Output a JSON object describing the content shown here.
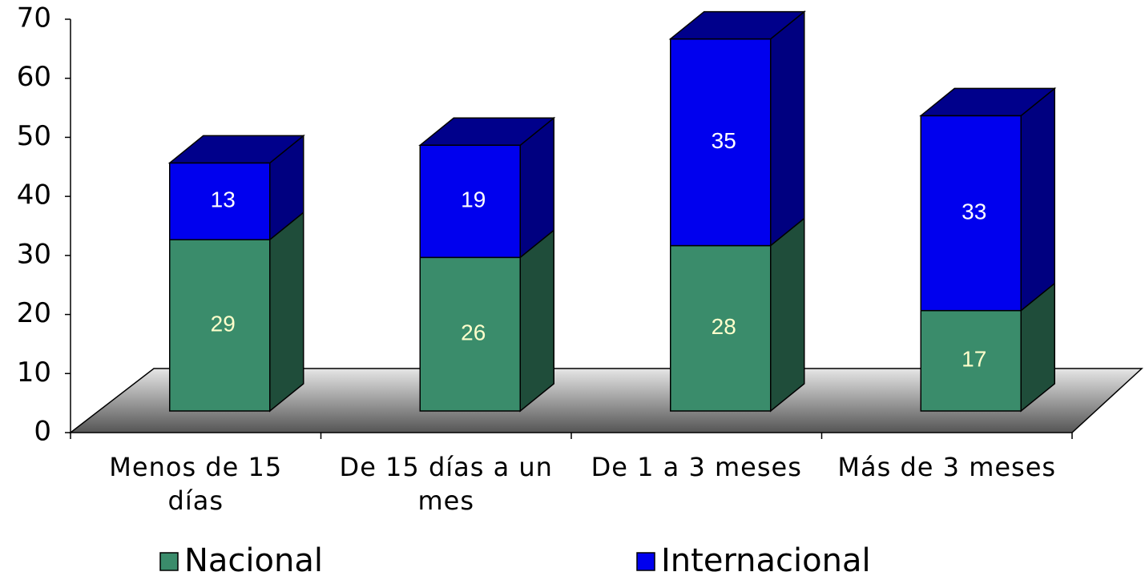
{
  "chart_data": {
    "type": "bar",
    "stacked": true,
    "categories": [
      "Menos de 15 días",
      "De 15 días a un mes",
      "De 1 a 3 meses",
      "Más de 3 meses"
    ],
    "series": [
      {
        "name": "Nacional",
        "color": "#3a8c6b",
        "values": [
          29,
          26,
          28,
          17
        ]
      },
      {
        "name": "Internacional",
        "color": "#0000ee",
        "values": [
          13,
          19,
          35,
          33
        ]
      }
    ],
    "ylim": [
      0,
      70
    ],
    "yticks": [
      0,
      10,
      20,
      30,
      40,
      50,
      60,
      70
    ],
    "grid": false
  }
}
